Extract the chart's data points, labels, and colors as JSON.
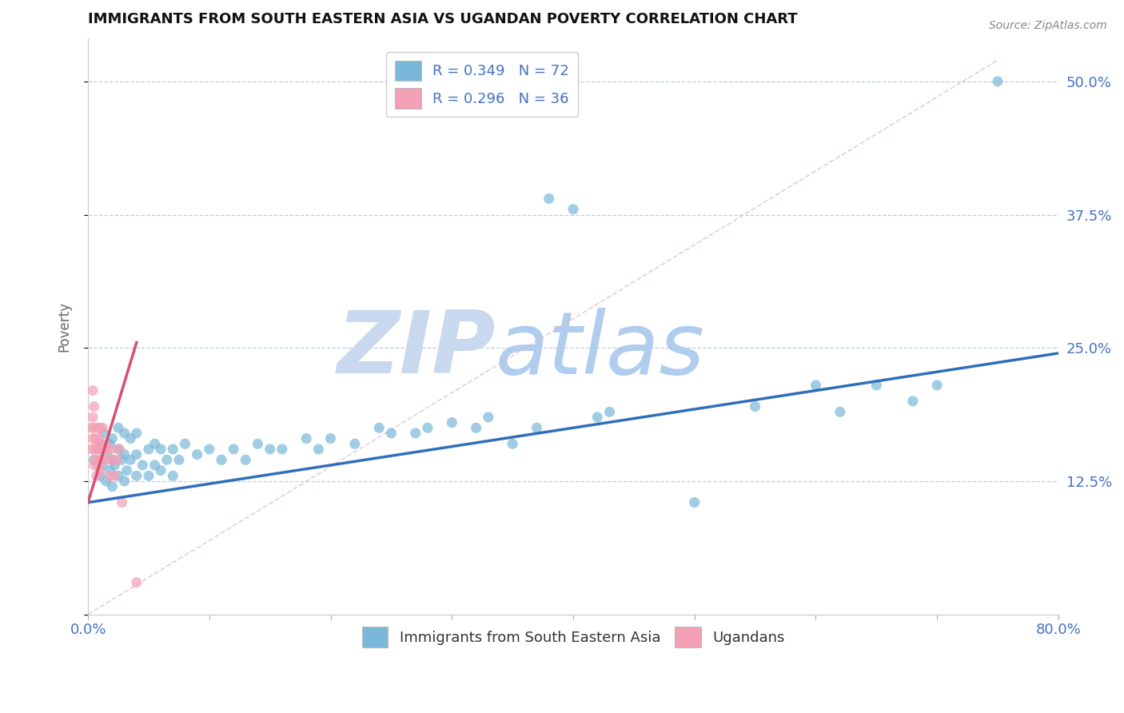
{
  "title": "IMMIGRANTS FROM SOUTH EASTERN ASIA VS UGANDAN POVERTY CORRELATION CHART",
  "source": "Source: ZipAtlas.com",
  "ylabel": "Poverty",
  "xlim": [
    0.0,
    0.8
  ],
  "ylim": [
    0.0,
    0.54
  ],
  "yticks": [
    0.0,
    0.125,
    0.25,
    0.375,
    0.5
  ],
  "ytick_labels": [
    "",
    "12.5%",
    "25.0%",
    "37.5%",
    "50.0%"
  ],
  "xticks": [
    0.0,
    0.1,
    0.2,
    0.3,
    0.4,
    0.5,
    0.6,
    0.7,
    0.8
  ],
  "xtick_labels": [
    "0.0%",
    "",
    "",
    "",
    "",
    "",
    "",
    "",
    "80.0%"
  ],
  "legend_r1": "R = 0.349   N = 72",
  "legend_r2": "R = 0.296   N = 36",
  "color_blue": "#7ab8d9",
  "color_pink": "#f4a0b5",
  "color_blue_line": "#2e6fba",
  "color_pink_line": "#d94f6e",
  "color_diag_dash": "#e0b8c0",
  "color_text": "#4472c4",
  "watermark_zip": "ZIP",
  "watermark_atlas": "atlas",
  "watermark_color_zip": "#c8d8ee",
  "watermark_color_atlas": "#b0ccee",
  "blue_scatter_x": [
    0.005,
    0.008,
    0.01,
    0.01,
    0.012,
    0.013,
    0.015,
    0.015,
    0.018,
    0.018,
    0.02,
    0.02,
    0.02,
    0.022,
    0.025,
    0.025,
    0.025,
    0.028,
    0.03,
    0.03,
    0.03,
    0.032,
    0.035,
    0.035,
    0.04,
    0.04,
    0.04,
    0.045,
    0.05,
    0.05,
    0.055,
    0.055,
    0.06,
    0.06,
    0.065,
    0.07,
    0.07,
    0.075,
    0.08,
    0.09,
    0.1,
    0.11,
    0.12,
    0.13,
    0.14,
    0.15,
    0.16,
    0.18,
    0.19,
    0.2,
    0.22,
    0.24,
    0.25,
    0.27,
    0.28,
    0.3,
    0.32,
    0.33,
    0.35,
    0.37,
    0.38,
    0.4,
    0.42,
    0.43,
    0.5,
    0.55,
    0.6,
    0.62,
    0.65,
    0.68,
    0.7,
    0.75
  ],
  "blue_scatter_y": [
    0.145,
    0.155,
    0.13,
    0.16,
    0.14,
    0.17,
    0.125,
    0.15,
    0.135,
    0.16,
    0.12,
    0.145,
    0.165,
    0.14,
    0.13,
    0.155,
    0.175,
    0.145,
    0.125,
    0.15,
    0.17,
    0.135,
    0.145,
    0.165,
    0.13,
    0.15,
    0.17,
    0.14,
    0.13,
    0.155,
    0.14,
    0.16,
    0.135,
    0.155,
    0.145,
    0.13,
    0.155,
    0.145,
    0.16,
    0.15,
    0.155,
    0.145,
    0.155,
    0.145,
    0.16,
    0.155,
    0.155,
    0.165,
    0.155,
    0.165,
    0.16,
    0.175,
    0.17,
    0.17,
    0.175,
    0.18,
    0.175,
    0.185,
    0.16,
    0.175,
    0.39,
    0.38,
    0.185,
    0.19,
    0.105,
    0.195,
    0.215,
    0.19,
    0.215,
    0.2,
    0.215,
    0.5
  ],
  "pink_scatter_x": [
    0.003,
    0.003,
    0.004,
    0.004,
    0.004,
    0.005,
    0.005,
    0.005,
    0.005,
    0.006,
    0.006,
    0.007,
    0.007,
    0.008,
    0.008,
    0.008,
    0.009,
    0.009,
    0.01,
    0.01,
    0.01,
    0.011,
    0.012,
    0.012,
    0.013,
    0.014,
    0.015,
    0.016,
    0.018,
    0.019,
    0.02,
    0.022,
    0.024,
    0.026,
    0.028,
    0.04
  ],
  "pink_scatter_y": [
    0.155,
    0.175,
    0.165,
    0.185,
    0.21,
    0.14,
    0.155,
    0.175,
    0.195,
    0.145,
    0.165,
    0.13,
    0.155,
    0.14,
    0.16,
    0.175,
    0.145,
    0.165,
    0.135,
    0.155,
    0.175,
    0.145,
    0.155,
    0.175,
    0.155,
    0.16,
    0.145,
    0.155,
    0.13,
    0.155,
    0.145,
    0.13,
    0.145,
    0.155,
    0.105,
    0.03
  ],
  "blue_trend_x": [
    0.0,
    0.8
  ],
  "blue_trend_y": [
    0.105,
    0.245
  ],
  "pink_trend_x": [
    0.0,
    0.04
  ],
  "pink_trend_y": [
    0.105,
    0.255
  ],
  "diag_trend_x": [
    0.0,
    0.75
  ],
  "diag_trend_y": [
    0.0,
    0.52
  ]
}
